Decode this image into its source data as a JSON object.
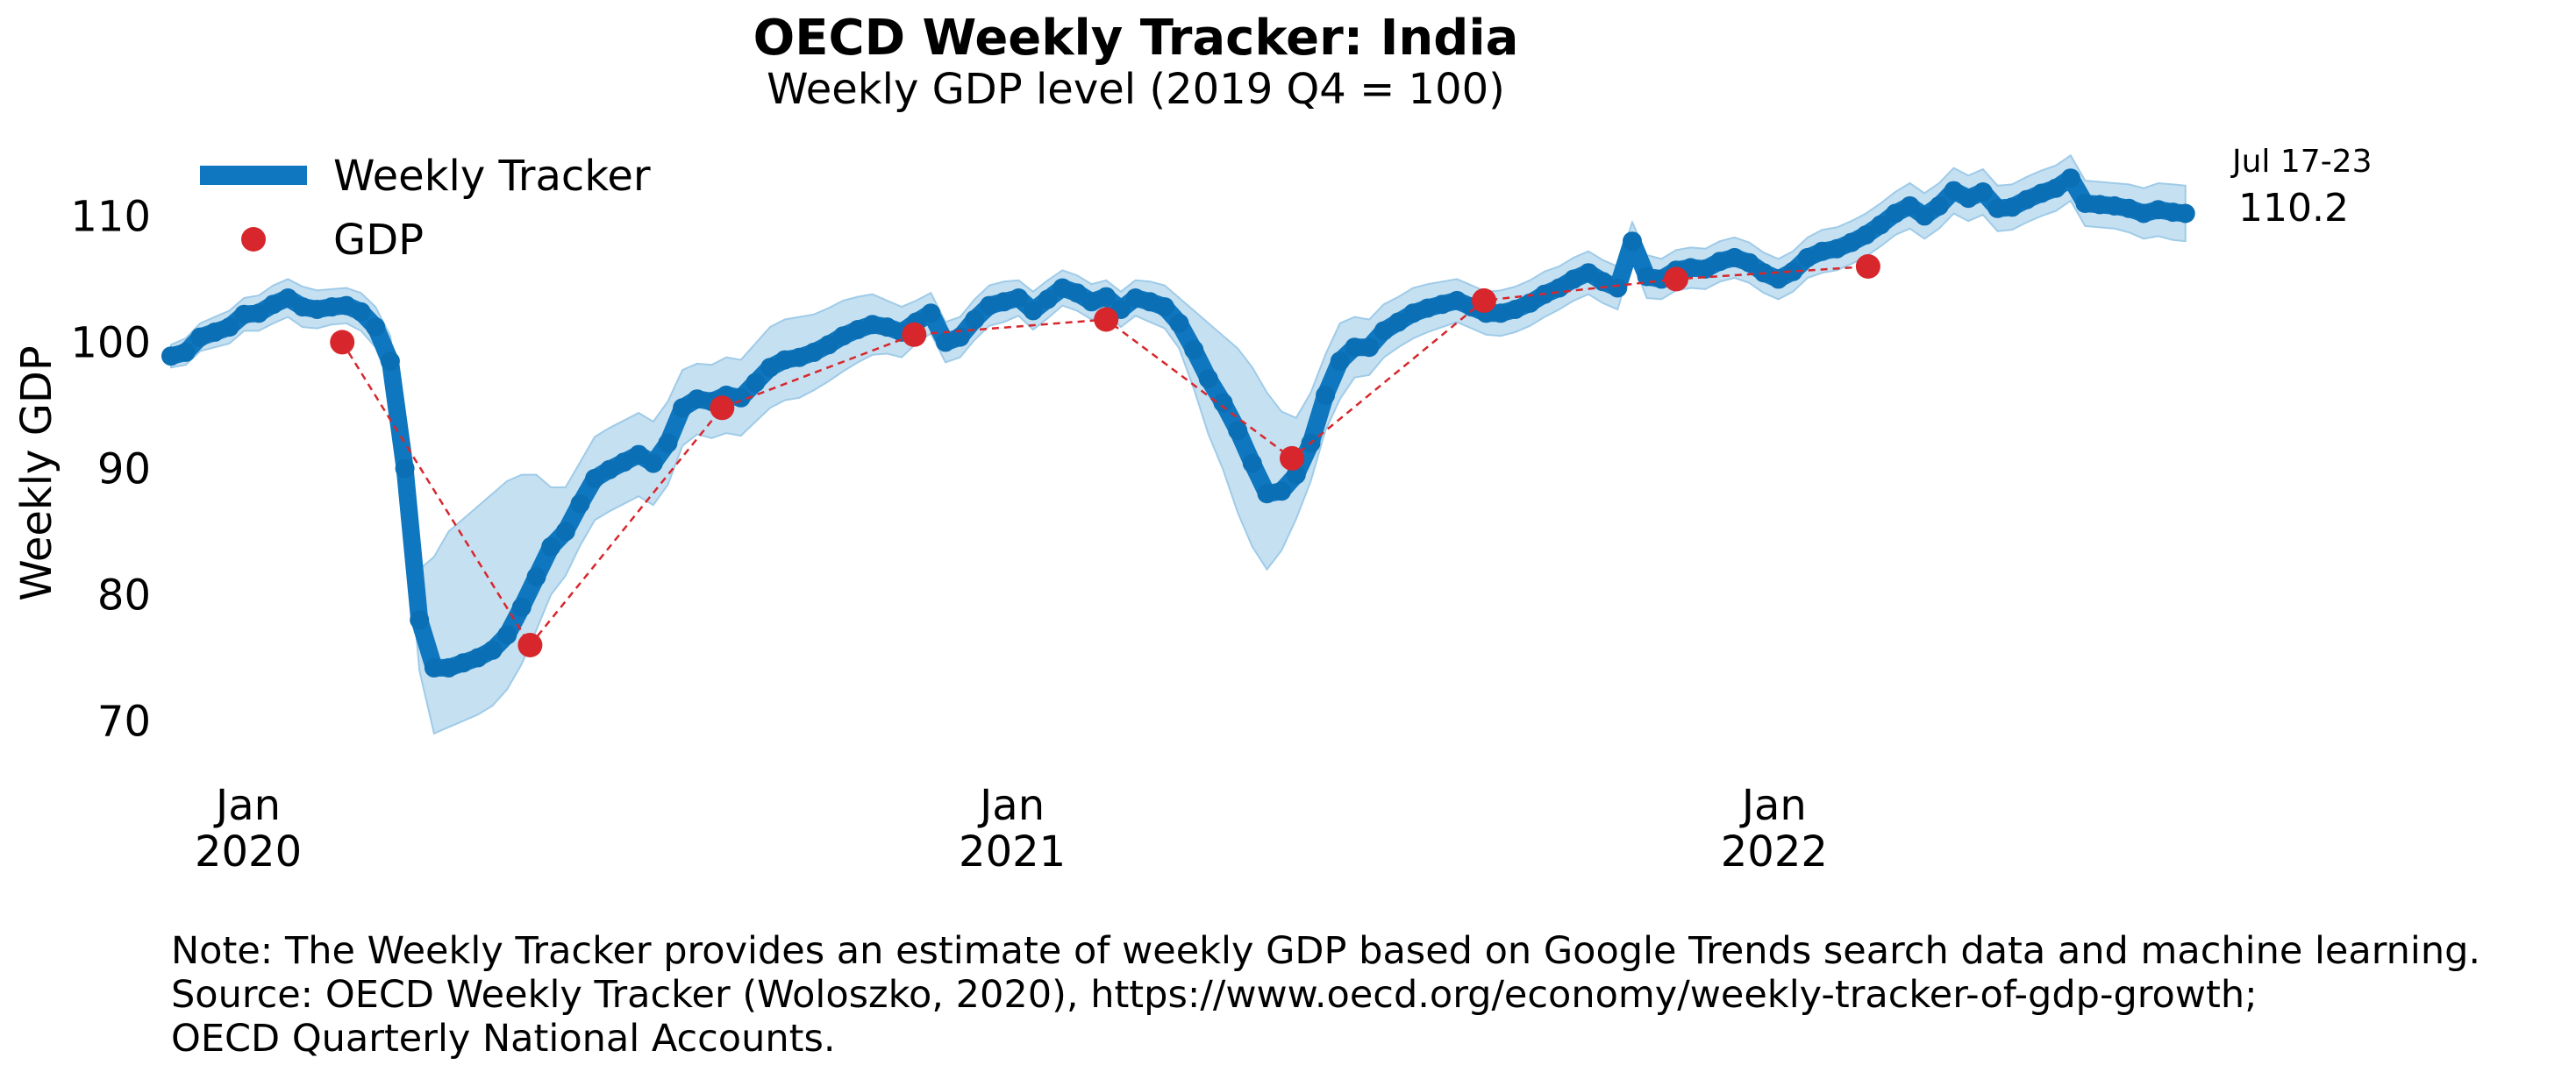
{
  "chart_data": {
    "type": "line",
    "title": "OECD Weekly Tracker: India",
    "subtitle": "Weekly GDP level (2019 Q4 = 100)",
    "ylabel": "Weekly GDP",
    "xlabel": "",
    "ylim": [
      66,
      116
    ],
    "yticks": [
      70,
      80,
      90,
      100,
      110
    ],
    "xlim": [
      "2019-11-25",
      "2022-07-31"
    ],
    "xticks": [
      {
        "date": "2020-01-01",
        "line1": "Jan",
        "line2": "2020"
      },
      {
        "date": "2021-01-01",
        "line1": "Jan",
        "line2": "2021"
      },
      {
        "date": "2022-01-01",
        "line1": "Jan",
        "line2": "2022"
      }
    ],
    "grid": false,
    "legend": {
      "position": "top-left",
      "entries": [
        "Weekly Tracker",
        "GDP"
      ]
    },
    "colors": {
      "tracker": "#0f77bf",
      "band": "#c5e0f1",
      "gdp": "#d7272d"
    },
    "series": [
      {
        "name": "Weekly Tracker",
        "x": [
          "2019-11-25",
          "2019-12-02",
          "2019-12-09",
          "2019-12-16",
          "2019-12-23",
          "2019-12-30",
          "2020-01-06",
          "2020-01-13",
          "2020-01-20",
          "2020-01-27",
          "2020-02-03",
          "2020-02-10",
          "2020-02-17",
          "2020-02-24",
          "2020-03-02",
          "2020-03-09",
          "2020-03-16",
          "2020-03-23",
          "2020-03-30",
          "2020-04-06",
          "2020-04-13",
          "2020-04-20",
          "2020-04-27",
          "2020-05-04",
          "2020-05-11",
          "2020-05-18",
          "2020-05-25",
          "2020-06-01",
          "2020-06-08",
          "2020-06-15",
          "2020-06-22",
          "2020-06-29",
          "2020-07-06",
          "2020-07-13",
          "2020-07-20",
          "2020-07-27",
          "2020-08-03",
          "2020-08-10",
          "2020-08-17",
          "2020-08-24",
          "2020-08-31",
          "2020-09-07",
          "2020-09-14",
          "2020-09-21",
          "2020-09-28",
          "2020-10-05",
          "2020-10-12",
          "2020-10-19",
          "2020-10-26",
          "2020-11-02",
          "2020-11-09",
          "2020-11-16",
          "2020-11-23",
          "2020-11-30",
          "2020-12-07",
          "2020-12-14",
          "2020-12-21",
          "2020-12-28",
          "2021-01-04",
          "2021-01-11",
          "2021-01-18",
          "2021-01-25",
          "2021-02-01",
          "2021-02-08",
          "2021-02-15",
          "2021-02-22",
          "2021-03-01",
          "2021-03-08",
          "2021-03-15",
          "2021-03-22",
          "2021-03-29",
          "2021-04-05",
          "2021-04-12",
          "2021-04-19",
          "2021-04-26",
          "2021-05-03",
          "2021-05-10",
          "2021-05-17",
          "2021-05-24",
          "2021-05-31",
          "2021-06-07",
          "2021-06-14",
          "2021-06-21",
          "2021-06-28",
          "2021-07-05",
          "2021-07-12",
          "2021-07-19",
          "2021-07-26",
          "2021-08-02",
          "2021-08-09",
          "2021-08-16",
          "2021-08-23",
          "2021-08-30",
          "2021-09-06",
          "2021-09-13",
          "2021-09-20",
          "2021-09-27",
          "2021-10-04",
          "2021-10-11",
          "2021-10-18",
          "2021-10-25",
          "2021-11-01",
          "2021-11-08",
          "2021-11-15",
          "2021-11-22",
          "2021-11-29",
          "2021-12-06",
          "2021-12-13",
          "2021-12-20",
          "2021-12-27",
          "2022-01-03",
          "2022-01-10",
          "2022-01-17",
          "2022-01-24",
          "2022-01-31",
          "2022-02-07",
          "2022-02-14",
          "2022-02-21",
          "2022-02-28",
          "2022-03-07",
          "2022-03-14",
          "2022-03-21",
          "2022-03-28",
          "2022-04-04",
          "2022-04-11",
          "2022-04-18",
          "2022-04-25",
          "2022-05-02",
          "2022-05-09",
          "2022-05-16",
          "2022-05-23",
          "2022-05-30",
          "2022-06-06",
          "2022-06-13",
          "2022-06-20",
          "2022-06-27",
          "2022-07-04",
          "2022-07-11",
          "2022-07-17"
        ],
        "values": [
          98.9,
          99.2,
          100.4,
          100.8,
          101.2,
          102.2,
          102.3,
          103.0,
          103.5,
          102.8,
          102.6,
          102.8,
          102.9,
          102.4,
          101.2,
          98.5,
          90.0,
          78.0,
          74.2,
          74.2,
          74.6,
          75.0,
          75.6,
          76.8,
          79.0,
          81.4,
          83.8,
          85.0,
          87.2,
          89.2,
          89.9,
          90.5,
          91.1,
          90.4,
          92.0,
          94.8,
          95.5,
          95.3,
          95.8,
          95.6,
          96.8,
          98.0,
          98.6,
          98.8,
          99.2,
          99.8,
          100.5,
          101.0,
          101.4,
          101.2,
          100.8,
          101.6,
          102.3,
          100.0,
          100.4,
          101.8,
          102.9,
          103.2,
          103.5,
          102.5,
          103.4,
          104.3,
          103.9,
          103.2,
          103.6,
          102.6,
          103.5,
          103.2,
          102.8,
          101.5,
          99.4,
          97.1,
          95.2,
          93.0,
          90.4,
          88.0,
          88.2,
          89.5,
          92.0,
          95.8,
          98.5,
          99.6,
          99.6,
          100.9,
          101.6,
          102.3,
          102.7,
          103.0,
          103.3,
          102.8,
          102.3,
          102.3,
          102.6,
          103.1,
          103.8,
          104.3,
          105.0,
          105.5,
          104.8,
          104.3,
          108.0,
          105.2,
          105.0,
          105.7,
          105.9,
          105.8,
          106.4,
          106.7,
          106.3,
          105.5,
          105.0,
          105.6,
          106.7,
          107.2,
          107.4,
          107.9,
          108.5,
          109.3,
          110.2,
          110.8,
          110.0,
          110.8,
          112.0,
          111.4,
          111.9,
          110.6,
          110.7,
          111.3,
          111.8,
          112.2,
          113.0,
          111.0,
          110.9,
          110.8,
          110.6,
          110.2,
          110.5,
          110.3,
          110.2
        ],
        "band_upper": [
          99.8,
          100.3,
          101.5,
          102.0,
          102.5,
          103.5,
          103.7,
          104.5,
          105.0,
          104.4,
          104.1,
          104.2,
          104.3,
          103.9,
          102.8,
          100.5,
          93.0,
          82.0,
          83.0,
          85.0,
          86.0,
          87.0,
          88.0,
          89.0,
          89.5,
          89.5,
          88.5,
          88.5,
          90.5,
          92.5,
          93.2,
          93.8,
          94.4,
          93.7,
          95.3,
          97.8,
          98.3,
          98.2,
          98.8,
          98.6,
          99.9,
          101.2,
          101.8,
          102.0,
          102.2,
          102.7,
          103.3,
          103.6,
          103.8,
          103.3,
          102.8,
          103.3,
          103.9,
          101.6,
          102.0,
          103.4,
          104.5,
          104.8,
          104.9,
          104.0,
          104.9,
          105.7,
          105.3,
          104.6,
          104.9,
          104.0,
          104.9,
          104.8,
          104.5,
          103.5,
          102.5,
          101.5,
          100.5,
          99.5,
          98.0,
          96.0,
          94.5,
          94.0,
          96.0,
          99.0,
          101.5,
          102.0,
          101.8,
          103.0,
          103.6,
          104.3,
          104.6,
          104.8,
          105.0,
          104.5,
          104.0,
          104.1,
          104.4,
          104.9,
          105.6,
          106.0,
          106.7,
          107.2,
          106.5,
          106.0,
          109.5,
          106.9,
          106.6,
          107.3,
          107.5,
          107.4,
          108.0,
          108.3,
          107.9,
          107.1,
          106.6,
          107.2,
          108.3,
          108.9,
          109.1,
          109.6,
          110.2,
          111.0,
          111.9,
          112.6,
          111.8,
          112.6,
          113.8,
          113.2,
          113.7,
          112.4,
          112.5,
          113.1,
          113.6,
          114.0,
          114.8,
          112.8,
          112.7,
          112.6,
          112.5,
          112.2,
          112.6,
          112.5,
          112.4
        ],
        "band_lower": [
          98.0,
          98.2,
          99.3,
          99.6,
          99.9,
          100.9,
          100.9,
          101.5,
          102.0,
          101.2,
          101.1,
          101.4,
          101.5,
          100.9,
          99.6,
          96.5,
          87.0,
          74.0,
          69.0,
          69.5,
          70.0,
          70.5,
          71.2,
          72.5,
          74.5,
          77.2,
          80.0,
          81.5,
          83.9,
          85.9,
          86.6,
          87.2,
          87.8,
          87.1,
          88.7,
          91.8,
          92.7,
          92.4,
          92.8,
          92.6,
          93.7,
          94.8,
          95.4,
          95.6,
          96.2,
          96.9,
          97.7,
          98.4,
          99.0,
          99.1,
          98.8,
          99.9,
          100.7,
          98.4,
          98.8,
          100.2,
          101.3,
          101.6,
          102.1,
          101.0,
          101.9,
          102.9,
          102.5,
          101.8,
          102.3,
          101.2,
          102.1,
          101.6,
          101.1,
          99.5,
          96.3,
          92.7,
          89.9,
          86.5,
          83.8,
          82.0,
          83.5,
          86.0,
          89.0,
          93.0,
          95.5,
          97.2,
          97.4,
          98.8,
          99.6,
          100.3,
          100.8,
          101.2,
          101.6,
          101.1,
          100.6,
          100.5,
          100.8,
          101.3,
          102.0,
          102.6,
          103.3,
          103.8,
          103.1,
          102.6,
          106.5,
          103.5,
          103.4,
          104.1,
          104.3,
          104.2,
          104.8,
          105.1,
          104.7,
          103.9,
          103.4,
          104.0,
          105.1,
          105.5,
          105.7,
          106.2,
          106.8,
          107.6,
          108.5,
          109.0,
          108.2,
          109.0,
          110.2,
          109.6,
          110.1,
          108.8,
          108.9,
          109.5,
          110.0,
          110.4,
          111.2,
          109.2,
          109.1,
          109.0,
          108.7,
          108.2,
          108.4,
          108.1,
          108.0
        ]
      },
      {
        "name": "GDP",
        "x": [
          "2020-02-15",
          "2020-05-15",
          "2020-08-15",
          "2020-11-15",
          "2021-02-15",
          "2021-05-15",
          "2021-08-15",
          "2021-11-15",
          "2022-02-15"
        ],
        "values": [
          100.0,
          76.0,
          94.8,
          100.6,
          101.8,
          90.8,
          103.3,
          105.0,
          106.0
        ]
      }
    ],
    "annotations": [
      {
        "label": "Jul 17-23",
        "value_label": "110.2"
      }
    ]
  },
  "note": {
    "line1": "Note: The Weekly Tracker provides an estimate of weekly GDP based on Google Trends search data and machine learning.",
    "line2": "Source: OECD Weekly Tracker (Woloszko, 2020), https://www.oecd.org/economy/weekly-tracker-of-gdp-growth;",
    "line3": "OECD Quarterly National Accounts."
  }
}
